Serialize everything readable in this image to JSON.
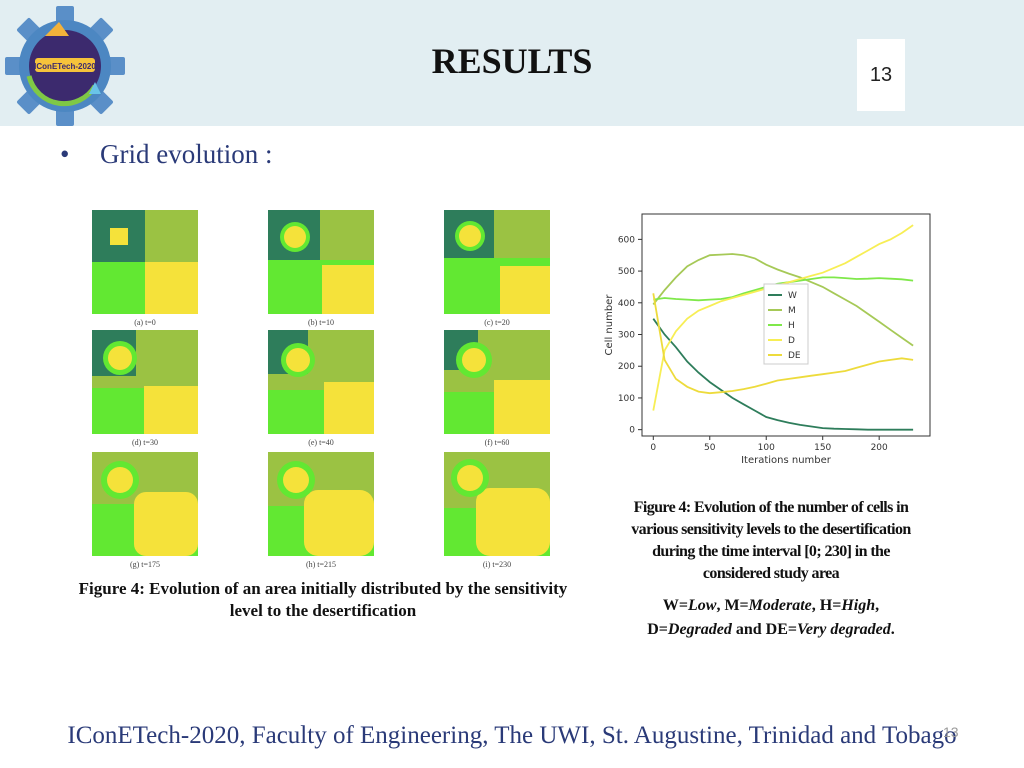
{
  "header": {
    "title": "RESULTS",
    "slide_number": "13",
    "logo_text": "IConETech-2020"
  },
  "bullet": {
    "text": "Grid evolution :"
  },
  "grid_panels": [
    {
      "caption": "(a) t=0"
    },
    {
      "caption": "(b) t=10"
    },
    {
      "caption": "(c) t=20"
    },
    {
      "caption": "(d) t=30"
    },
    {
      "caption": "(e) t=40"
    },
    {
      "caption": "(f) t=60"
    },
    {
      "caption": "(g) t=175"
    },
    {
      "caption": "(h) t=215"
    },
    {
      "caption": "(i) t=230"
    }
  ],
  "left_caption": "Figure 4: Evolution of an area initially distributed by the sensitivity level to the desertification",
  "right_caption": "Figure 4: Evolution of the number of cells in various sensitivity levels to the desertification during the time interval [0; 230] in the considered study area",
  "right_legend_text": {
    "line1_parts": [
      "W=",
      "Low",
      ", M=",
      "Moderate",
      ", H=",
      "High",
      ","
    ],
    "line2_parts": [
      "D=",
      "Degraded",
      " and DE=",
      "Very degraded",
      "."
    ]
  },
  "footer": {
    "text": "IConETech-2020, Faculty of Engineering, The UWI, St. Augustine, Trinidad and Tobago",
    "page_number": "13"
  },
  "colors": {
    "W": "#2e7d5b",
    "M": "#9bc243",
    "H": "#62e832",
    "D": "#f5e23a",
    "DE": "#e9cf34",
    "header_band": "#e2eef2",
    "footer_text": "#2a3a78"
  },
  "chart_data": {
    "type": "line",
    "xlabel": "Iterations number",
    "ylabel": "Cell number",
    "xlim": [
      -10,
      245
    ],
    "ylim": [
      -20,
      680
    ],
    "xticks": [
      0,
      50,
      100,
      150,
      200
    ],
    "yticks": [
      0,
      100,
      200,
      300,
      400,
      500,
      600
    ],
    "legend_position": "center-right",
    "x": [
      0,
      10,
      20,
      30,
      40,
      50,
      60,
      70,
      80,
      90,
      100,
      110,
      120,
      130,
      140,
      150,
      160,
      170,
      180,
      190,
      200,
      210,
      220,
      230
    ],
    "series": [
      {
        "name": "W",
        "color": "#2e7d5b",
        "values": [
          350,
          300,
          260,
          215,
          180,
          150,
          125,
          100,
          80,
          60,
          40,
          30,
          22,
          15,
          10,
          5,
          3,
          2,
          1,
          0,
          0,
          0,
          0,
          0
        ]
      },
      {
        "name": "M",
        "color": "#a6c957",
        "values": [
          395,
          440,
          480,
          515,
          535,
          550,
          552,
          554,
          550,
          540,
          520,
          505,
          492,
          480,
          465,
          450,
          430,
          410,
          390,
          365,
          340,
          315,
          290,
          265
        ]
      },
      {
        "name": "H",
        "color": "#7fe84a",
        "values": [
          410,
          415,
          412,
          410,
          408,
          410,
          412,
          418,
          430,
          440,
          450,
          460,
          465,
          470,
          475,
          480,
          480,
          478,
          475,
          476,
          478,
          476,
          474,
          470
        ]
      },
      {
        "name": "D",
        "color": "#f7ee55",
        "values": [
          60,
          250,
          310,
          350,
          375,
          390,
          405,
          415,
          425,
          435,
          445,
          455,
          465,
          475,
          485,
          495,
          510,
          525,
          545,
          565,
          585,
          600,
          620,
          645
        ]
      },
      {
        "name": "DE",
        "color": "#eddb3c",
        "values": [
          430,
          220,
          160,
          135,
          120,
          115,
          118,
          122,
          128,
          135,
          145,
          155,
          160,
          165,
          170,
          175,
          180,
          185,
          195,
          205,
          215,
          220,
          225,
          220
        ]
      }
    ]
  }
}
